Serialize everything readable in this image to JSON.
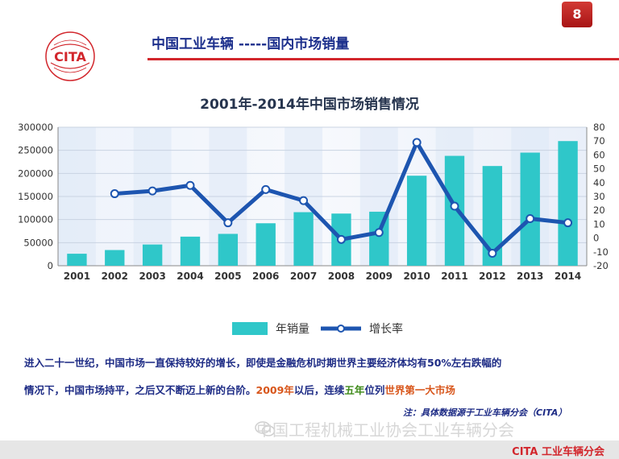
{
  "header": {
    "page_number": "8",
    "logo_text": "CITA",
    "title": "中国工业车辆 -----国内市场销量"
  },
  "chart_data": {
    "type": "bar",
    "title": "2001年-2014年中国市场销售情况",
    "categories": [
      "2001",
      "2002",
      "2003",
      "2004",
      "2005",
      "2006",
      "2007",
      "2008",
      "2009",
      "2010",
      "2011",
      "2012",
      "2013",
      "2014"
    ],
    "series": [
      {
        "name": "年销量",
        "type": "bar",
        "axis": "left",
        "values": [
          26000,
          34000,
          46000,
          63000,
          69000,
          92000,
          116000,
          113000,
          117000,
          195000,
          238000,
          216000,
          245000,
          270000
        ]
      },
      {
        "name": "增长率",
        "type": "line",
        "axis": "right",
        "values": [
          null,
          32,
          34,
          38,
          11,
          35,
          27,
          -1,
          4,
          69,
          23,
          -11,
          14,
          11
        ]
      }
    ],
    "y_left": {
      "min": 0,
      "max": 300000,
      "ticks": [
        0,
        50000,
        100000,
        150000,
        200000,
        250000,
        300000
      ]
    },
    "y_right": {
      "min": -20,
      "max": 80,
      "ticks": [
        -20,
        -10,
        0,
        10,
        20,
        30,
        40,
        50,
        60,
        70,
        80
      ]
    },
    "legend_position": "bottom",
    "grid": true,
    "colors": {
      "bar": "#2fc7c9",
      "line": "#1d55b0",
      "marker_fill": "#ffffff"
    }
  },
  "description": {
    "line1": "进入二十一世纪，中国市场一直保持较好的增长，即使是金融危机时期世界主要经济体均有50%左右跌幅的",
    "line2_a": "情况下，中国市场持平，之后又不断迈上新的台阶。",
    "line2_b": "2009年",
    "line2_c": "以后，连续",
    "line2_d": "五年",
    "line2_e": "位列",
    "line2_f": "世界第一大市场"
  },
  "note": "注：具体数据源于工业车辆分会（CITA）",
  "watermark": "中国工程机械工业协会工业车辆分会",
  "footer": {
    "brand": "CITA 工业车辆分会"
  }
}
